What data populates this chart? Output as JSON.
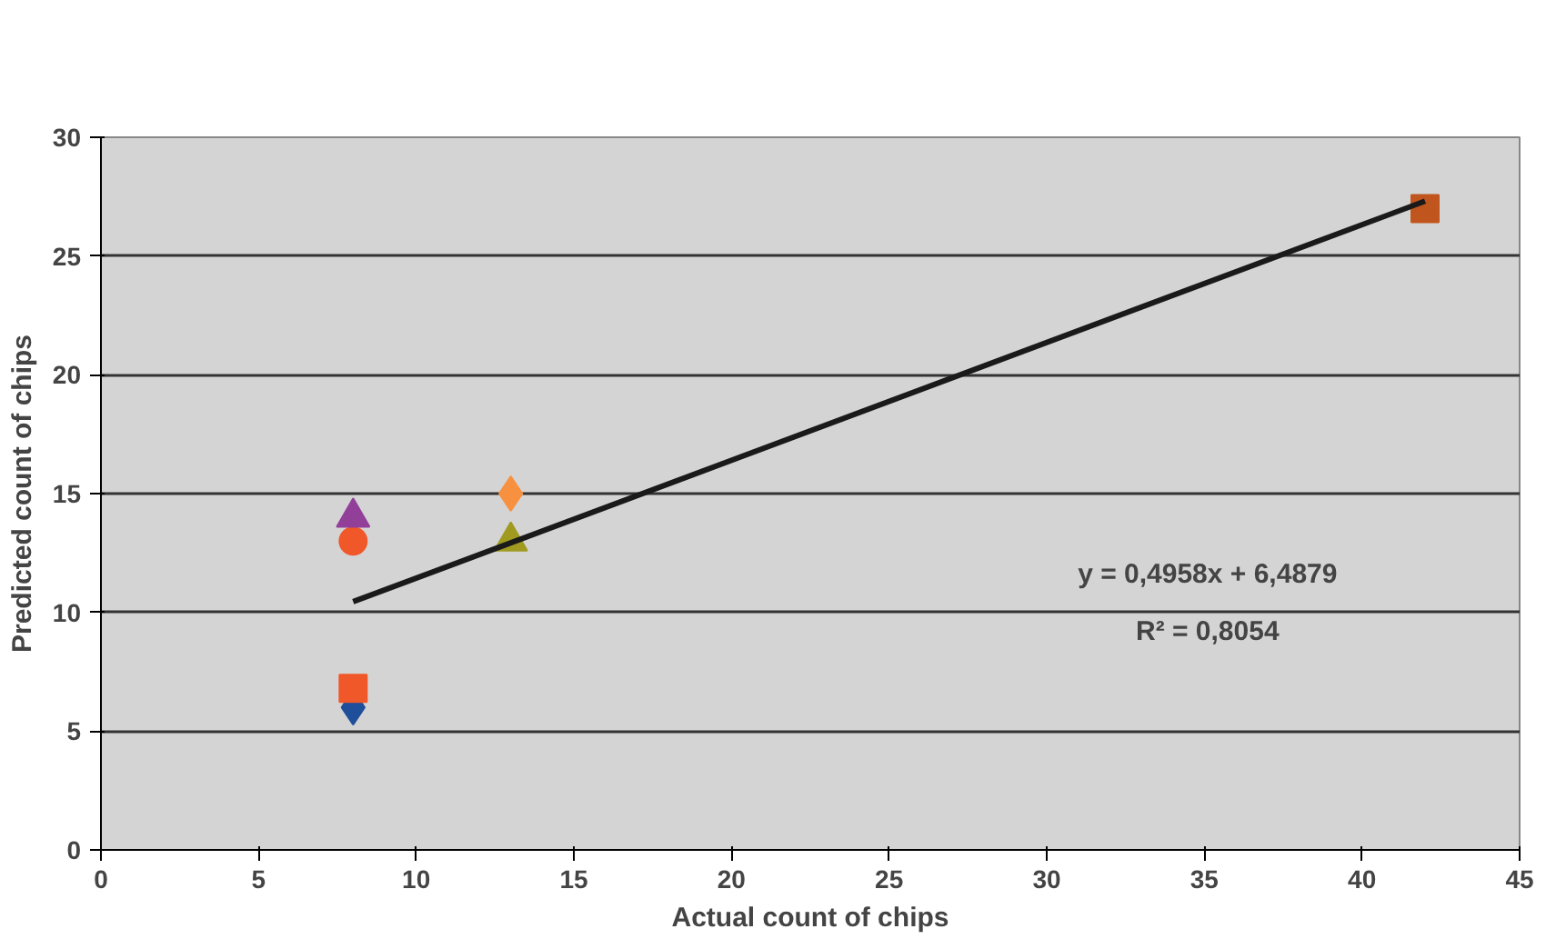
{
  "chart_data": {
    "type": "scatter",
    "xlabel": "Actual count of chips",
    "ylabel": "Predicted count of chips",
    "xlim": [
      0,
      45
    ],
    "xticks": [
      0,
      5,
      10,
      15,
      20,
      25,
      30,
      35,
      40,
      45
    ],
    "ylim": [
      0,
      30
    ],
    "yticks": [
      0,
      5,
      10,
      15,
      20,
      25,
      30
    ],
    "grid": "y",
    "series": [
      {
        "color": "#1f4e9a",
        "marker": "diamond",
        "x": [
          8
        ],
        "values": [
          6
        ]
      },
      {
        "color": "#f0582a",
        "marker": "square",
        "x": [
          8
        ],
        "values": [
          6.8
        ]
      },
      {
        "color": "#f0582a",
        "marker": "circle",
        "x": [
          8
        ],
        "values": [
          13
        ]
      },
      {
        "color": "#923f9a",
        "marker": "triangle",
        "x": [
          8
        ],
        "values": [
          14
        ]
      },
      {
        "color": "#f7913f",
        "marker": "diamond",
        "x": [
          13
        ],
        "values": [
          15
        ]
      },
      {
        "color": "#a09a20",
        "marker": "triangle",
        "x": [
          13
        ],
        "values": [
          13
        ]
      },
      {
        "color": "#c0561e",
        "marker": "square",
        "x": [
          42
        ],
        "values": [
          27
        ]
      },
      {
        "type": "line",
        "color": "#1a1a1a",
        "marker": "none",
        "x": [
          8,
          42
        ],
        "values": [
          10.45,
          27.31
        ]
      }
    ],
    "annotations": [
      "y = 0,4958x + 6,4879",
      "R² = 0,8054"
    ]
  }
}
